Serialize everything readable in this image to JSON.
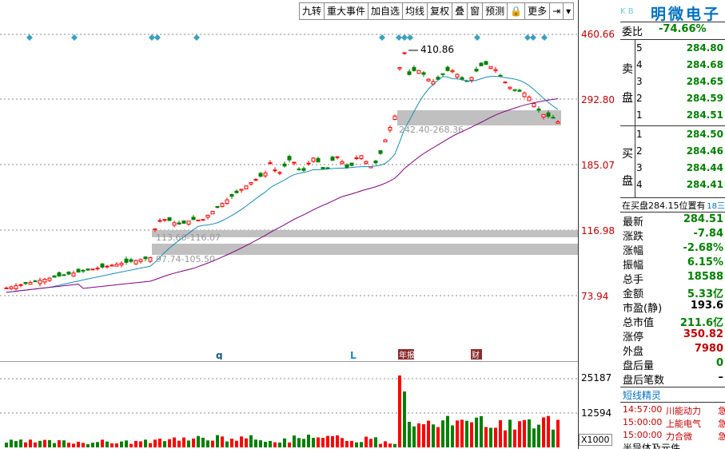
{
  "toolbar": {
    "buttons": [
      "九转",
      "重大事件",
      "加自选",
      "均线",
      "复权",
      "叠",
      "窗",
      "预测",
      "🔒",
      "更多",
      "⇥",
      "▾"
    ]
  },
  "price_axis": [
    "460.66",
    "292.80",
    "185.07",
    "116.98",
    "73.94"
  ],
  "zones": [
    {
      "label": "242.40-268.36"
    },
    {
      "label": "113.60-116.07"
    },
    {
      "label": "97.74-105.50"
    }
  ],
  "peak_label": "410.86",
  "markers": {
    "q": "q",
    "l": "L",
    "event1": "年报",
    "event2": "财"
  },
  "volume_axis": [
    "25187",
    "12594"
  ],
  "volume_unit": "X1000",
  "right": {
    "tag": "K B",
    "name": "明微电子",
    "weibi_label": "委比",
    "weibi_value": "-74.66%",
    "sell_side_a": "卖",
    "sell_side_b": "盘",
    "buy_side_a": "买",
    "buy_side_b": "盘",
    "sell": [
      {
        "idx": "5",
        "price": "284.80"
      },
      {
        "idx": "4",
        "price": "284.68"
      },
      {
        "idx": "3",
        "price": "284.65"
      },
      {
        "idx": "2",
        "price": "284.59"
      },
      {
        "idx": "1",
        "price": "284.51"
      }
    ],
    "buy": [
      {
        "idx": "1",
        "price": "284.50"
      },
      {
        "idx": "2",
        "price": "284.46"
      },
      {
        "idx": "3",
        "price": "284.44"
      },
      {
        "idx": "4",
        "price": "284.41"
      }
    ],
    "ticker_line": "在买盘284.15位置有",
    "ticker_extra": "18三",
    "stats": [
      {
        "label": "最新",
        "value": "284.51",
        "color": "#008000"
      },
      {
        "label": "涨跌",
        "value": "-7.84",
        "color": "#008000"
      },
      {
        "label": "涨幅",
        "value": "-2.68%",
        "color": "#008000"
      },
      {
        "label": "振幅",
        "value": "6.15%",
        "color": "#008000"
      },
      {
        "label": "总手",
        "value": "18588",
        "color": "#008000"
      },
      {
        "label": "金额",
        "value": "5.33亿",
        "color": "#008000"
      },
      {
        "label": "市盈(静)",
        "value": "193.6",
        "color": "#000000"
      },
      {
        "label": "总市值",
        "value": "211.6亿",
        "color": "#008000"
      },
      {
        "label": "涨停",
        "value": "350.82",
        "color": "#c00000"
      },
      {
        "label": "外盘",
        "value": "7980",
        "color": "#c00000"
      },
      {
        "label": "盘后量",
        "value": "0",
        "color": "#008000"
      },
      {
        "label": "盘后笔数",
        "value": "–",
        "color": "#000000"
      }
    ],
    "news_title": "短线精灵",
    "news": [
      {
        "time": "14:57:00",
        "name": "川能动力",
        "tag": "急"
      },
      {
        "time": "15:00:00",
        "name": "上能电气",
        "tag": "急"
      },
      {
        "time": "15:00:00",
        "name": "力合微",
        "tag": "急"
      }
    ],
    "footer": "半导体及元件"
  },
  "colors": {
    "up": "#ff0000",
    "down": "#008000",
    "ma_short": "#1a8cb5",
    "ma_long": "#800080",
    "zone": "#c0c0c0",
    "marker": "#3aa0c0"
  }
}
